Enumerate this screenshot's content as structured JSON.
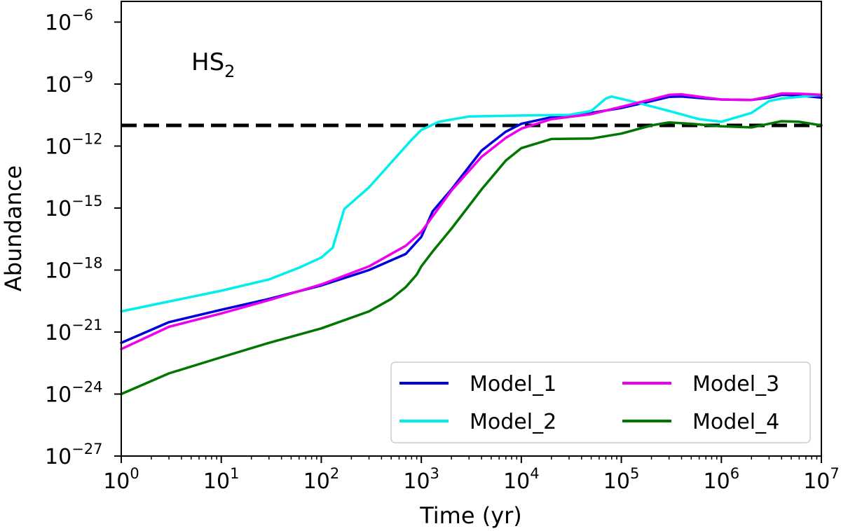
{
  "chart_data": {
    "type": "line",
    "title": "",
    "annotation": {
      "main": "HS",
      "sub": "2"
    },
    "xlabel": "Time (yr)",
    "ylabel": "Abundance",
    "xscale": "log",
    "yscale": "log",
    "xlim": [
      1,
      10000000
    ],
    "ylim": [
      1e-27,
      1e-05
    ],
    "x_ticks": [
      {
        "base": "10",
        "exp": "0",
        "value": 1
      },
      {
        "base": "10",
        "exp": "1",
        "value": 10
      },
      {
        "base": "10",
        "exp": "2",
        "value": 100
      },
      {
        "base": "10",
        "exp": "3",
        "value": 1000
      },
      {
        "base": "10",
        "exp": "4",
        "value": 10000
      },
      {
        "base": "10",
        "exp": "5",
        "value": 100000
      },
      {
        "base": "10",
        "exp": "6",
        "value": 1000000
      },
      {
        "base": "10",
        "exp": "7",
        "value": 10000000
      }
    ],
    "y_ticks": [
      {
        "base": "10",
        "exp": "−6",
        "value": 1e-06
      },
      {
        "base": "10",
        "exp": "−9",
        "value": 1e-09
      },
      {
        "base": "10",
        "exp": "−12",
        "value": 1e-12
      },
      {
        "base": "10",
        "exp": "−15",
        "value": 1e-15
      },
      {
        "base": "10",
        "exp": "−18",
        "value": 1e-18
      },
      {
        "base": "10",
        "exp": "−21",
        "value": 1e-21
      },
      {
        "base": "10",
        "exp": "−24",
        "value": 1e-24
      },
      {
        "base": "10",
        "exp": "−27",
        "value": 1e-27
      }
    ],
    "reference_line": {
      "y": 1e-11,
      "style": "dashed",
      "color": "#000000"
    },
    "legend": {
      "placement": "lower-right",
      "columns": 2
    },
    "series": [
      {
        "name": "Model_1",
        "color": "#0000dd",
        "points": [
          [
            1,
            3e-22
          ],
          [
            3,
            3e-21
          ],
          [
            10,
            1.2e-20
          ],
          [
            30,
            4e-20
          ],
          [
            100,
            1.8e-19
          ],
          [
            300,
            1e-18
          ],
          [
            700,
            6e-18
          ],
          [
            1000,
            4e-17
          ],
          [
            1300,
            7e-16
          ],
          [
            2000,
            8e-15
          ],
          [
            4000,
            6e-13
          ],
          [
            7000,
            5e-12
          ],
          [
            10000,
            1.2e-11
          ],
          [
            20000,
            2.5e-11
          ],
          [
            50000,
            4e-11
          ],
          [
            100000,
            7e-11
          ],
          [
            200000,
            1.5e-10
          ],
          [
            300000,
            2.4e-10
          ],
          [
            400000,
            2.5e-10
          ],
          [
            700000,
            2e-10
          ],
          [
            1000000,
            1.8e-10
          ],
          [
            2000000,
            1.7e-10
          ],
          [
            3000000,
            2.2e-10
          ],
          [
            4000000,
            3e-10
          ],
          [
            6000000,
            2.8e-10
          ],
          [
            10000000,
            2.2e-10
          ]
        ]
      },
      {
        "name": "Model_2",
        "color": "#00eeee",
        "points": [
          [
            1,
            1e-20
          ],
          [
            3,
            3e-20
          ],
          [
            10,
            1e-19
          ],
          [
            30,
            3.5e-19
          ],
          [
            60,
            1.3e-18
          ],
          [
            100,
            4e-18
          ],
          [
            130,
            1.2e-17
          ],
          [
            170,
            9e-16
          ],
          [
            300,
            1e-14
          ],
          [
            500,
            1.6e-13
          ],
          [
            800,
            2e-12
          ],
          [
            1000,
            6e-12
          ],
          [
            1500,
            1.5e-11
          ],
          [
            3000,
            2.7e-11
          ],
          [
            10000,
            3e-11
          ],
          [
            30000,
            3.2e-11
          ],
          [
            50000,
            5e-11
          ],
          [
            70000,
            2e-10
          ],
          [
            80000,
            2.5e-10
          ],
          [
            150000,
            1.2e-10
          ],
          [
            300000,
            5e-11
          ],
          [
            600000,
            2e-11
          ],
          [
            1000000,
            1.5e-11
          ],
          [
            2000000,
            4e-11
          ],
          [
            3000000,
            1.5e-10
          ],
          [
            4000000,
            2e-10
          ],
          [
            10000000,
            3e-10
          ]
        ]
      },
      {
        "name": "Model_3",
        "color": "#ee00ee",
        "points": [
          [
            1,
            1.5e-22
          ],
          [
            3,
            1.8e-21
          ],
          [
            10,
            8e-21
          ],
          [
            30,
            3.5e-20
          ],
          [
            100,
            2e-19
          ],
          [
            300,
            1.5e-18
          ],
          [
            700,
            1.5e-17
          ],
          [
            1000,
            7e-17
          ],
          [
            2000,
            7e-15
          ],
          [
            4000,
            3e-13
          ],
          [
            7000,
            2.5e-12
          ],
          [
            10000,
            7e-12
          ],
          [
            20000,
            2e-11
          ],
          [
            50000,
            3.5e-11
          ],
          [
            100000,
            8e-11
          ],
          [
            200000,
            1.8e-10
          ],
          [
            300000,
            3e-10
          ],
          [
            400000,
            3.2e-10
          ],
          [
            700000,
            2.2e-10
          ],
          [
            1000000,
            1.8e-10
          ],
          [
            2000000,
            1.7e-10
          ],
          [
            3000000,
            2.5e-10
          ],
          [
            4000000,
            3.5e-10
          ],
          [
            6000000,
            3.4e-10
          ],
          [
            10000000,
            3e-10
          ]
        ]
      },
      {
        "name": "Model_4",
        "color": "#007700",
        "points": [
          [
            1,
            1e-24
          ],
          [
            3,
            1e-23
          ],
          [
            10,
            6e-23
          ],
          [
            30,
            3e-22
          ],
          [
            100,
            1.5e-21
          ],
          [
            300,
            1e-20
          ],
          [
            500,
            4e-20
          ],
          [
            700,
            1.5e-19
          ],
          [
            900,
            6e-19
          ],
          [
            1000,
            1.5e-18
          ],
          [
            1300,
            8e-18
          ],
          [
            2000,
            1e-16
          ],
          [
            4000,
            8e-15
          ],
          [
            7000,
            2e-13
          ],
          [
            10000,
            8e-13
          ],
          [
            20000,
            2.2e-12
          ],
          [
            50000,
            2.3e-12
          ],
          [
            100000,
            4e-12
          ],
          [
            200000,
            1e-11
          ],
          [
            300000,
            1.4e-11
          ],
          [
            500000,
            1.2e-11
          ],
          [
            1000000,
            9e-12
          ],
          [
            2000000,
            8e-12
          ],
          [
            3000000,
            1.2e-11
          ],
          [
            4000000,
            1.6e-11
          ],
          [
            6000000,
            1.5e-11
          ],
          [
            10000000,
            1e-11
          ]
        ]
      }
    ]
  }
}
